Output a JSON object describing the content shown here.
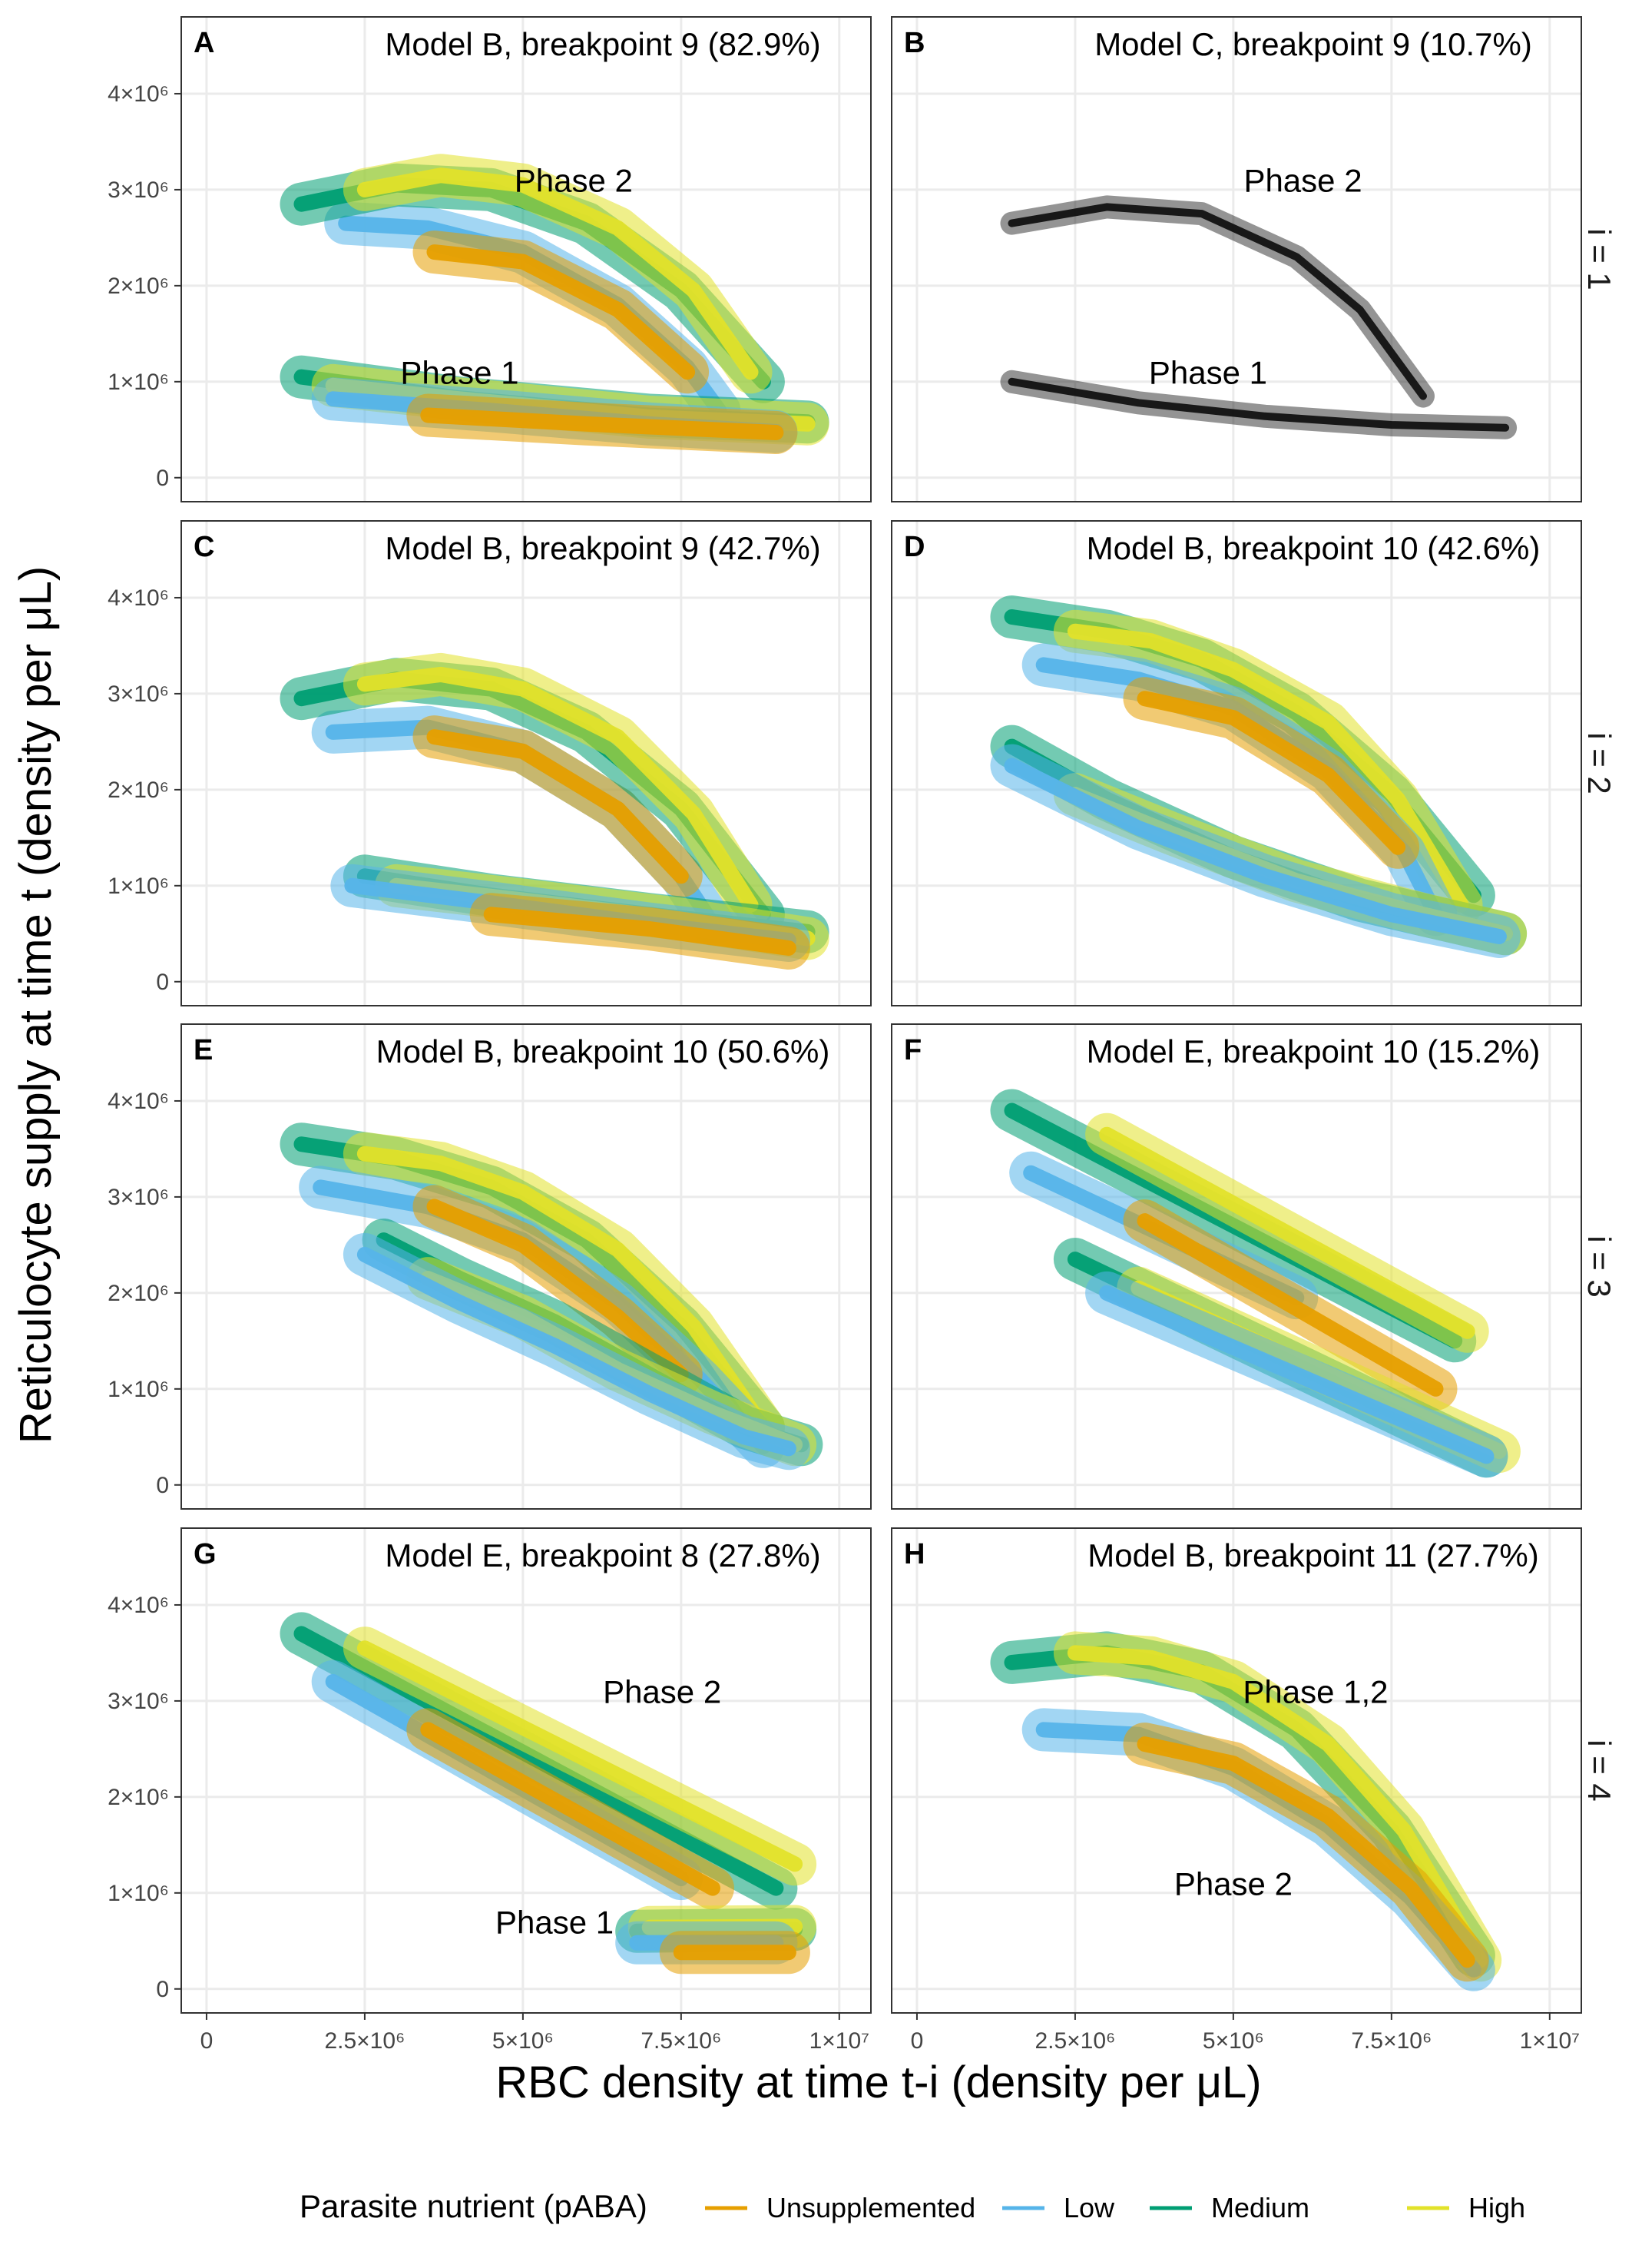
{
  "chart_data": {
    "type": "line",
    "layout": "4x2 facet grid",
    "ylabel": "Reticulocyte supply at time t (density per μL)",
    "xlabel": "RBC density at time t-i (density per μL)",
    "xlim": [
      -400000,
      10500000
    ],
    "ylim": [
      -250000,
      4800000
    ],
    "x_ticks": [
      {
        "value": 0,
        "label": "0"
      },
      {
        "value": 2500000,
        "label": "2.5×10⁶"
      },
      {
        "value": 5000000,
        "label": "5×10⁶"
      },
      {
        "value": 7500000,
        "label": "7.5×10⁶"
      },
      {
        "value": 10000000,
        "label": "1×10⁷"
      }
    ],
    "y_ticks": [
      {
        "value": 0,
        "label": "0"
      },
      {
        "value": 1000000,
        "label": "1×10⁶"
      },
      {
        "value": 2000000,
        "label": "2×10⁶"
      },
      {
        "value": 3000000,
        "label": "3×10⁶"
      },
      {
        "value": 4000000,
        "label": "4×10⁶"
      }
    ],
    "grid": true,
    "rows": [
      {
        "strip": "i = 1"
      },
      {
        "strip": "i = 2"
      },
      {
        "strip": "i = 3"
      },
      {
        "strip": "i = 4"
      }
    ],
    "legend": {
      "title": "Parasite nutrient (pABA)",
      "position": "bottom",
      "items": [
        {
          "label": "Unsupplemented",
          "color": "#E69F00"
        },
        {
          "label": "Low",
          "color": "#56B4E9"
        },
        {
          "label": "Medium",
          "color": "#009E73"
        },
        {
          "label": "High",
          "color": "#E2E22A"
        }
      ]
    },
    "panels": [
      {
        "tag": "A",
        "title": "Model B, breakpoint 9 (82.9%)",
        "row": 0,
        "col": 0,
        "annotations": [
          {
            "text": "Phase 2",
            "x": 5800000,
            "y": 2980000
          },
          {
            "text": "Phase 1",
            "x": 4000000,
            "y": 980000
          }
        ],
        "series": [
          {
            "group": "Low",
            "x": [
              2200000,
              3500000,
              5000000,
              6500000,
              7600000,
              8100000
            ],
            "y": [
              2650000,
              2600000,
              2350000,
              1800000,
              1150000,
              700000
            ]
          },
          {
            "group": "Unsupplemented",
            "x": [
              3600000,
              5000000,
              6500000,
              7600000
            ],
            "y": [
              2350000,
              2250000,
              1750000,
              1100000
            ]
          },
          {
            "group": "Medium",
            "x": [
              1500000,
              3000000,
              4500000,
              6000000,
              7500000,
              8800000
            ],
            "y": [
              2850000,
              3050000,
              3000000,
              2650000,
              1950000,
              1000000
            ]
          },
          {
            "group": "High",
            "x": [
              2500000,
              3700000,
              5000000,
              6500000,
              7700000,
              8600000
            ],
            "y": [
              3000000,
              3150000,
              3050000,
              2600000,
              1950000,
              1100000
            ]
          },
          {
            "group": "Medium",
            "x": [
              1500000,
              4000000,
              7000000,
              9500000
            ],
            "y": [
              1050000,
              830000,
              650000,
              580000
            ]
          },
          {
            "group": "High",
            "x": [
              2000000,
              4000000,
              7000000,
              9500000
            ],
            "y": [
              960000,
              820000,
              630000,
              560000
            ]
          },
          {
            "group": "Low",
            "x": [
              2000000,
              4500000,
              7000000,
              9000000
            ],
            "y": [
              820000,
              700000,
              560000,
              480000
            ]
          },
          {
            "group": "Unsupplemented",
            "x": [
              3500000,
              6000000,
              9000000
            ],
            "y": [
              650000,
              560000,
              470000
            ]
          }
        ]
      },
      {
        "tag": "B",
        "title": "Model C, breakpoint 9 (10.7%)",
        "row": 0,
        "col": 1,
        "annotations": [
          {
            "text": "Phase 2",
            "x": 6100000,
            "y": 2980000
          },
          {
            "text": "Phase 1",
            "x": 4600000,
            "y": 980000
          }
        ],
        "series": [
          {
            "group": "All",
            "x": [
              1500000,
              3000000,
              4500000,
              6000000,
              7000000,
              8000000
            ],
            "y": [
              2650000,
              2820000,
              2750000,
              2300000,
              1750000,
              850000
            ]
          },
          {
            "group": "All",
            "x": [
              1500000,
              3500000,
              5500000,
              7500000,
              9300000
            ],
            "y": [
              1000000,
              780000,
              640000,
              550000,
              520000
            ]
          }
        ]
      },
      {
        "tag": "C",
        "title": "Model B, breakpoint 9 (42.7%)",
        "row": 1,
        "col": 0,
        "annotations": [],
        "series": [
          {
            "group": "Low",
            "x": [
              2000000,
              3500000,
              5000000,
              6500000,
              7500000,
              8000000
            ],
            "y": [
              2600000,
              2650000,
              2400000,
              1800000,
              1100000,
              600000
            ]
          },
          {
            "group": "Unsupplemented",
            "x": [
              3600000,
              5000000,
              6500000,
              7500000
            ],
            "y": [
              2550000,
              2400000,
              1800000,
              1100000
            ]
          },
          {
            "group": "Medium",
            "x": [
              1500000,
              3000000,
              4500000,
              6000000,
              7500000,
              8800000
            ],
            "y": [
              2950000,
              3150000,
              3050000,
              2600000,
              1800000,
              700000
            ]
          },
          {
            "group": "High",
            "x": [
              2500000,
              3700000,
              5000000,
              6500000,
              7700000,
              8600000
            ],
            "y": [
              3100000,
              3200000,
              3050000,
              2550000,
              1750000,
              800000
            ]
          },
          {
            "group": "Medium",
            "x": [
              2500000,
              4500000,
              7000000,
              9500000
            ],
            "y": [
              1100000,
              900000,
              700000,
              520000
            ]
          },
          {
            "group": "High",
            "x": [
              3000000,
              5000000,
              7500000,
              9500000
            ],
            "y": [
              1000000,
              850000,
              650000,
              450000
            ]
          },
          {
            "group": "Low",
            "x": [
              2300000,
              4500000,
              7000000,
              9200000
            ],
            "y": [
              1000000,
              820000,
              600000,
              430000
            ]
          },
          {
            "group": "Unsupplemented",
            "x": [
              4500000,
              7000000,
              9200000
            ],
            "y": [
              700000,
              550000,
              350000
            ]
          }
        ]
      },
      {
        "tag": "D",
        "title": "Model B, breakpoint 10 (42.6%)",
        "row": 1,
        "col": 1,
        "annotations": [],
        "series": [
          {
            "group": "Medium",
            "x": [
              1500000,
              3000000,
              4500000,
              6000000,
              7500000,
              8800000
            ],
            "y": [
              3800000,
              3650000,
              3350000,
              2800000,
              1950000,
              900000
            ]
          },
          {
            "group": "High",
            "x": [
              2500000,
              3700000,
              5000000,
              6500000,
              7600000,
              8600000
            ],
            "y": [
              3650000,
              3550000,
              3250000,
              2700000,
              1900000,
              800000
            ]
          },
          {
            "group": "Low",
            "x": [
              2000000,
              3500000,
              5000000,
              6500000,
              7700000,
              8200000
            ],
            "y": [
              3300000,
              3150000,
              2850000,
              2200000,
              1350000,
              700000
            ]
          },
          {
            "group": "Unsupplemented",
            "x": [
              3600000,
              5000000,
              6500000,
              7600000
            ],
            "y": [
              2950000,
              2750000,
              2150000,
              1400000
            ]
          },
          {
            "group": "Medium",
            "x": [
              1500000,
              3000000,
              5000000,
              7000000,
              9300000
            ],
            "y": [
              2450000,
              1900000,
              1300000,
              850000,
              500000
            ]
          },
          {
            "group": "High",
            "x": [
              2500000,
              4000000,
              6000000,
              8000000,
              9300000
            ],
            "y": [
              1950000,
              1550000,
              1050000,
              700000,
              500000
            ]
          },
          {
            "group": "Low",
            "x": [
              1500000,
              3500000,
              5500000,
              7500000,
              9200000
            ],
            "y": [
              2250000,
              1600000,
              1100000,
              700000,
              470000
            ]
          }
        ]
      },
      {
        "tag": "E",
        "title": "Model B, breakpoint 10 (50.6%)",
        "row": 2,
        "col": 0,
        "annotations": [],
        "series": [
          {
            "group": "Medium",
            "x": [
              1500000,
              3000000,
              4500000,
              6000000,
              7500000,
              8800000
            ],
            "y": [
              3550000,
              3400000,
              3100000,
              2550000,
              1650000,
              600000
            ]
          },
          {
            "group": "High",
            "x": [
              2500000,
              3700000,
              5000000,
              6500000,
              7700000,
              8800000
            ],
            "y": [
              3450000,
              3350000,
              3050000,
              2450000,
              1650000,
              600000
            ]
          },
          {
            "group": "Low",
            "x": [
              1800000,
              3500000,
              5000000,
              6500000,
              7800000,
              8800000
            ],
            "y": [
              3100000,
              2900000,
              2550000,
              1900000,
              1100000,
              400000
            ]
          },
          {
            "group": "Unsupplemented",
            "x": [
              3600000,
              5000000,
              6500000,
              7500000
            ],
            "y": [
              2900000,
              2500000,
              1750000,
              1150000
            ]
          },
          {
            "group": "Medium",
            "x": [
              2800000,
              4000000,
              5500000,
              7000000,
              8500000,
              9400000
            ],
            "y": [
              2550000,
              2150000,
              1700000,
              1150000,
              600000,
              420000
            ]
          },
          {
            "group": "High",
            "x": [
              3500000,
              5000000,
              6500000,
              8000000,
              9300000
            ],
            "y": [
              2150000,
              1750000,
              1200000,
              750000,
              420000
            ]
          },
          {
            "group": "Low",
            "x": [
              2500000,
              4000000,
              5500000,
              7000000,
              8500000,
              9200000
            ],
            "y": [
              2400000,
              1900000,
              1450000,
              950000,
              500000,
              380000
            ]
          }
        ]
      },
      {
        "tag": "F",
        "title": "Model E, breakpoint 10 (15.2%)",
        "row": 2,
        "col": 1,
        "annotations": [],
        "series": [
          {
            "group": "Medium",
            "x": [
              1500000,
              8500000
            ],
            "y": [
              3900000,
              1500000
            ]
          },
          {
            "group": "High",
            "x": [
              3000000,
              8700000
            ],
            "y": [
              3650000,
              1600000
            ]
          },
          {
            "group": "Low",
            "x": [
              1800000,
              6000000
            ],
            "y": [
              3250000,
              1950000
            ]
          },
          {
            "group": "Unsupplemented",
            "x": [
              3600000,
              8200000
            ],
            "y": [
              2750000,
              1000000
            ]
          },
          {
            "group": "Medium",
            "x": [
              2500000,
              9000000
            ],
            "y": [
              2350000,
              300000
            ]
          },
          {
            "group": "High",
            "x": [
              3500000,
              9200000
            ],
            "y": [
              2050000,
              350000
            ]
          },
          {
            "group": "Low",
            "x": [
              3000000,
              9000000
            ],
            "y": [
              2000000,
              300000
            ]
          }
        ]
      },
      {
        "tag": "G",
        "title": "Model E, breakpoint 8 (27.8%)",
        "row": 3,
        "col": 0,
        "annotations": [
          {
            "text": "Phase 2",
            "x": 7200000,
            "y": 2980000
          },
          {
            "text": "Phase 1",
            "x": 5500000,
            "y": 580000
          }
        ],
        "series": [
          {
            "group": "Medium",
            "x": [
              1500000,
              9000000
            ],
            "y": [
              3700000,
              1050000
            ]
          },
          {
            "group": "High",
            "x": [
              2500000,
              9300000
            ],
            "y": [
              3550000,
              1300000
            ]
          },
          {
            "group": "Low",
            "x": [
              2000000,
              7500000
            ],
            "y": [
              3200000,
              1150000
            ]
          },
          {
            "group": "Unsupplemented",
            "x": [
              3500000,
              8000000
            ],
            "y": [
              2700000,
              1050000
            ]
          },
          {
            "group": "Medium",
            "x": [
              6800000,
              9300000
            ],
            "y": [
              600000,
              620000
            ]
          },
          {
            "group": "High",
            "x": [
              7000000,
              9300000
            ],
            "y": [
              640000,
              650000
            ]
          },
          {
            "group": "Low",
            "x": [
              6800000,
              9000000
            ],
            "y": [
              480000,
              480000
            ]
          },
          {
            "group": "Unsupplemented",
            "x": [
              7500000,
              9200000
            ],
            "y": [
              380000,
              380000
            ]
          }
        ]
      },
      {
        "tag": "H",
        "title": "Model B, breakpoint 11 (27.7%)",
        "row": 3,
        "col": 1,
        "annotations": [
          {
            "text": "Phase 1,2",
            "x": 6300000,
            "y": 2980000
          },
          {
            "text": "Phase 2",
            "x": 5000000,
            "y": 980000
          }
        ],
        "series": [
          {
            "group": "Medium",
            "x": [
              1500000,
              3000000,
              4500000,
              6000000,
              7500000,
              8800000
            ],
            "y": [
              3400000,
              3500000,
              3300000,
              2700000,
              1650000,
              350000
            ]
          },
          {
            "group": "High",
            "x": [
              2500000,
              3700000,
              5000000,
              6500000,
              7700000,
              8900000
            ],
            "y": [
              3500000,
              3450000,
              3200000,
              2550000,
              1650000,
              300000
            ]
          },
          {
            "group": "Low",
            "x": [
              2000000,
              3500000,
              5000000,
              6500000,
              7800000,
              8800000
            ],
            "y": [
              2700000,
              2650000,
              2300000,
              1700000,
              950000,
              200000
            ]
          },
          {
            "group": "Unsupplemented",
            "x": [
              3600000,
              5000000,
              6500000,
              7800000,
              8700000
            ],
            "y": [
              2550000,
              2350000,
              1800000,
              1050000,
              300000
            ]
          }
        ]
      }
    ]
  }
}
